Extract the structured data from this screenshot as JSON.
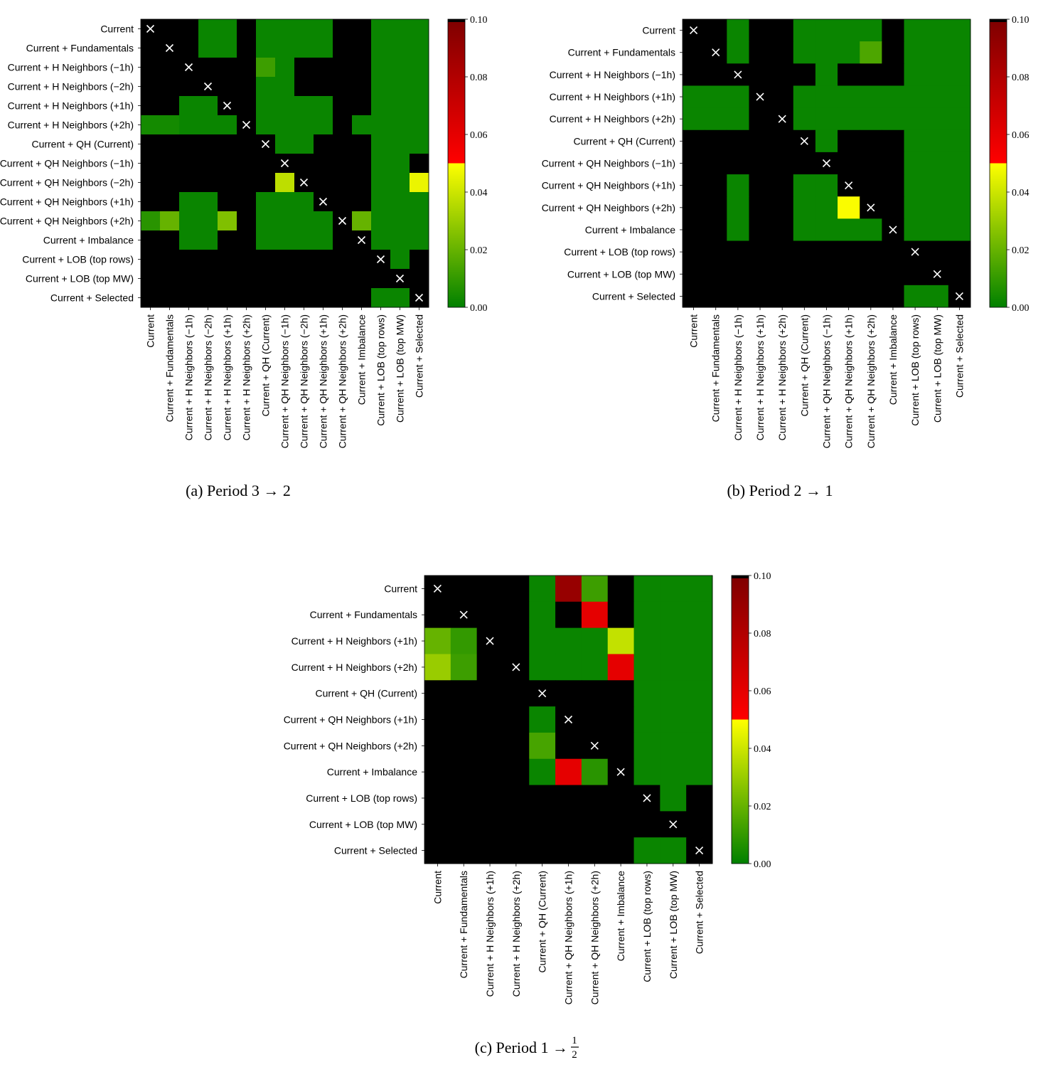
{
  "colorbar": {
    "ticks": [
      "0.00",
      "0.02",
      "0.04",
      "0.06",
      "0.08",
      "0.10"
    ],
    "range": [
      0,
      0.1
    ],
    "stops": [
      {
        "v": 0.0,
        "c": "#008000"
      },
      {
        "v": 0.05,
        "c": "#ffff00"
      },
      {
        "v": 0.05,
        "c": "#ff0000"
      },
      {
        "v": 0.099,
        "c": "#800000"
      },
      {
        "v": 0.099,
        "c": "#000000"
      },
      {
        "v": 0.1,
        "c": "#000000"
      }
    ]
  },
  "colors": {
    "insignificant": "#000000",
    "diagonal_mark": "#ffffff"
  },
  "chart_data": [
    {
      "type": "heatmap",
      "caption": "(a) Period 3 → 2",
      "labels": [
        "Current",
        "Current + Fundamentals",
        "Current + H Neighbors (−1h)",
        "Current + H Neighbors (−2h)",
        "Current + H Neighbors (+1h)",
        "Current + H Neighbors (+2h)",
        "Current + QH (Current)",
        "Current + QH Neighbors (−1h)",
        "Current + QH Neighbors (−2h)",
        "Current + QH Neighbors (+1h)",
        "Current + QH Neighbors (+2h)",
        "Current + Imbalance",
        "Current + LOB (top rows)",
        "Current + LOB (top MW)",
        "Current + Selected"
      ],
      "values": [
        [
          null,
          1,
          1,
          0.002,
          0.002,
          1,
          0.002,
          0.002,
          0.002,
          0.002,
          1,
          1,
          0.002,
          0.002,
          0.002
        ],
        [
          1,
          null,
          1,
          0.002,
          0.002,
          1,
          0.002,
          0.002,
          0.002,
          0.002,
          1,
          1,
          0.002,
          0.002,
          0.002
        ],
        [
          1,
          1,
          null,
          1,
          1,
          1,
          0.012,
          0.002,
          1,
          1,
          1,
          1,
          0.002,
          0.002,
          0.002
        ],
        [
          1,
          1,
          1,
          null,
          1,
          1,
          0.002,
          0.002,
          1,
          1,
          1,
          1,
          0.002,
          0.002,
          0.002
        ],
        [
          1,
          1,
          0.002,
          0.002,
          null,
          1,
          0.002,
          0.002,
          0.002,
          0.002,
          1,
          1,
          0.002,
          0.002,
          0.002
        ],
        [
          0.004,
          0.004,
          0.002,
          0.002,
          0.002,
          null,
          0.002,
          0.002,
          0.002,
          0.002,
          1,
          0.002,
          0.002,
          0.002,
          0.002
        ],
        [
          1,
          1,
          1,
          1,
          1,
          1,
          null,
          0.002,
          0.002,
          1,
          1,
          1,
          0.002,
          0.002,
          0.002
        ],
        [
          1,
          1,
          1,
          1,
          1,
          1,
          1,
          null,
          1,
          1,
          1,
          1,
          0.002,
          0.002,
          1
        ],
        [
          1,
          1,
          1,
          1,
          1,
          1,
          1,
          0.037,
          null,
          1,
          1,
          1,
          0.002,
          0.002,
          0.046
        ],
        [
          1,
          1,
          0.002,
          0.002,
          1,
          1,
          0.002,
          0.002,
          0.002,
          null,
          1,
          1,
          0.002,
          0.002,
          0.002
        ],
        [
          0.008,
          0.02,
          0.002,
          0.002,
          0.025,
          1,
          0.002,
          0.002,
          0.002,
          0.002,
          null,
          0.02,
          0.002,
          0.002,
          0.002
        ],
        [
          1,
          1,
          0.002,
          0.002,
          1,
          1,
          0.002,
          0.002,
          0.002,
          0.002,
          1,
          null,
          0.002,
          0.002,
          0.002
        ],
        [
          1,
          1,
          1,
          1,
          1,
          1,
          1,
          1,
          1,
          1,
          1,
          1,
          null,
          0.002,
          1
        ],
        [
          1,
          1,
          1,
          1,
          1,
          1,
          1,
          1,
          1,
          1,
          1,
          1,
          1,
          null,
          1
        ],
        [
          1,
          1,
          1,
          1,
          1,
          1,
          1,
          1,
          1,
          1,
          1,
          1,
          0.002,
          0.002,
          null
        ]
      ]
    },
    {
      "type": "heatmap",
      "caption": "(b) Period 2 → 1",
      "labels": [
        "Current",
        "Current + Fundamentals",
        "Current + H Neighbors (−1h)",
        "Current + H Neighbors (+1h)",
        "Current + H Neighbors (+2h)",
        "Current + QH (Current)",
        "Current + QH Neighbors (−1h)",
        "Current + QH Neighbors (+1h)",
        "Current + QH Neighbors (+2h)",
        "Current + Imbalance",
        "Current + LOB (top rows)",
        "Current + LOB (top MW)",
        "Current + Selected"
      ],
      "values": [
        [
          null,
          1,
          0.002,
          1,
          1,
          0.002,
          0.002,
          0.002,
          0.002,
          1,
          0.002,
          0.002,
          0.002
        ],
        [
          1,
          null,
          0.002,
          1,
          1,
          0.002,
          0.002,
          0.002,
          0.015,
          1,
          0.002,
          0.002,
          0.002
        ],
        [
          1,
          1,
          null,
          1,
          1,
          1,
          0.002,
          1,
          1,
          1,
          0.002,
          0.002,
          0.002
        ],
        [
          0.002,
          0.002,
          0.002,
          null,
          1,
          0.002,
          0.002,
          0.002,
          0.002,
          0.002,
          0.002,
          0.002,
          0.002
        ],
        [
          0.002,
          0.002,
          0.002,
          1,
          null,
          0.002,
          0.002,
          0.002,
          0.002,
          0.002,
          0.002,
          0.002,
          0.002
        ],
        [
          1,
          1,
          1,
          1,
          1,
          null,
          0.002,
          1,
          1,
          1,
          0.002,
          0.002,
          0.002
        ],
        [
          1,
          1,
          1,
          1,
          1,
          1,
          null,
          1,
          1,
          1,
          0.002,
          0.002,
          0.002
        ],
        [
          1,
          1,
          0.002,
          1,
          1,
          0.002,
          0.002,
          null,
          1,
          1,
          0.002,
          0.002,
          0.002
        ],
        [
          1,
          1,
          0.002,
          1,
          1,
          0.002,
          0.002,
          0.049,
          null,
          1,
          0.002,
          0.002,
          0.002
        ],
        [
          1,
          1,
          0.002,
          1,
          1,
          0.002,
          0.002,
          0.002,
          0.002,
          null,
          0.002,
          0.002,
          0.002
        ],
        [
          1,
          1,
          1,
          1,
          1,
          1,
          1,
          1,
          1,
          1,
          null,
          1,
          1
        ],
        [
          1,
          1,
          1,
          1,
          1,
          1,
          1,
          1,
          1,
          1,
          1,
          null,
          1
        ],
        [
          1,
          1,
          1,
          1,
          1,
          1,
          1,
          1,
          1,
          1,
          0.002,
          0.002,
          null
        ]
      ]
    },
    {
      "type": "heatmap",
      "caption_prefix": "(c) Period 1 → ",
      "caption_num": "1",
      "caption_den": "2",
      "labels": [
        "Current",
        "Current + Fundamentals",
        "Current + H Neighbors (+1h)",
        "Current + H Neighbors (+2h)",
        "Current + QH (Current)",
        "Current + QH Neighbors (+1h)",
        "Current + QH Neighbors (+2h)",
        "Current + Imbalance",
        "Current + LOB (top rows)",
        "Current + LOB (top MW)",
        "Current + Selected"
      ],
      "values": [
        [
          null,
          1,
          1,
          1,
          0.002,
          0.09,
          0.012,
          1,
          0.002,
          0.002,
          0.002
        ],
        [
          1,
          null,
          1,
          1,
          0.002,
          1,
          0.06,
          1,
          0.002,
          0.002,
          0.002
        ],
        [
          0.02,
          0.01,
          null,
          1,
          0.002,
          0.002,
          0.002,
          0.038,
          0.002,
          0.002,
          0.002
        ],
        [
          0.03,
          0.012,
          1,
          null,
          0.002,
          0.002,
          0.002,
          0.06,
          0.002,
          0.002,
          0.002
        ],
        [
          1,
          1,
          1,
          1,
          null,
          1,
          1,
          1,
          0.002,
          0.002,
          0.002
        ],
        [
          1,
          1,
          1,
          1,
          0.002,
          null,
          1,
          1,
          0.002,
          0.002,
          0.002
        ],
        [
          1,
          1,
          1,
          1,
          0.014,
          1,
          null,
          1,
          0.002,
          0.002,
          0.002
        ],
        [
          1,
          1,
          1,
          1,
          0.002,
          0.06,
          0.008,
          null,
          0.002,
          0.002,
          0.002
        ],
        [
          1,
          1,
          1,
          1,
          1,
          1,
          1,
          1,
          null,
          0.002,
          1
        ],
        [
          1,
          1,
          1,
          1,
          1,
          1,
          1,
          1,
          1,
          null,
          1
        ],
        [
          1,
          1,
          1,
          1,
          1,
          1,
          1,
          1,
          0.002,
          0.002,
          null
        ]
      ]
    }
  ]
}
